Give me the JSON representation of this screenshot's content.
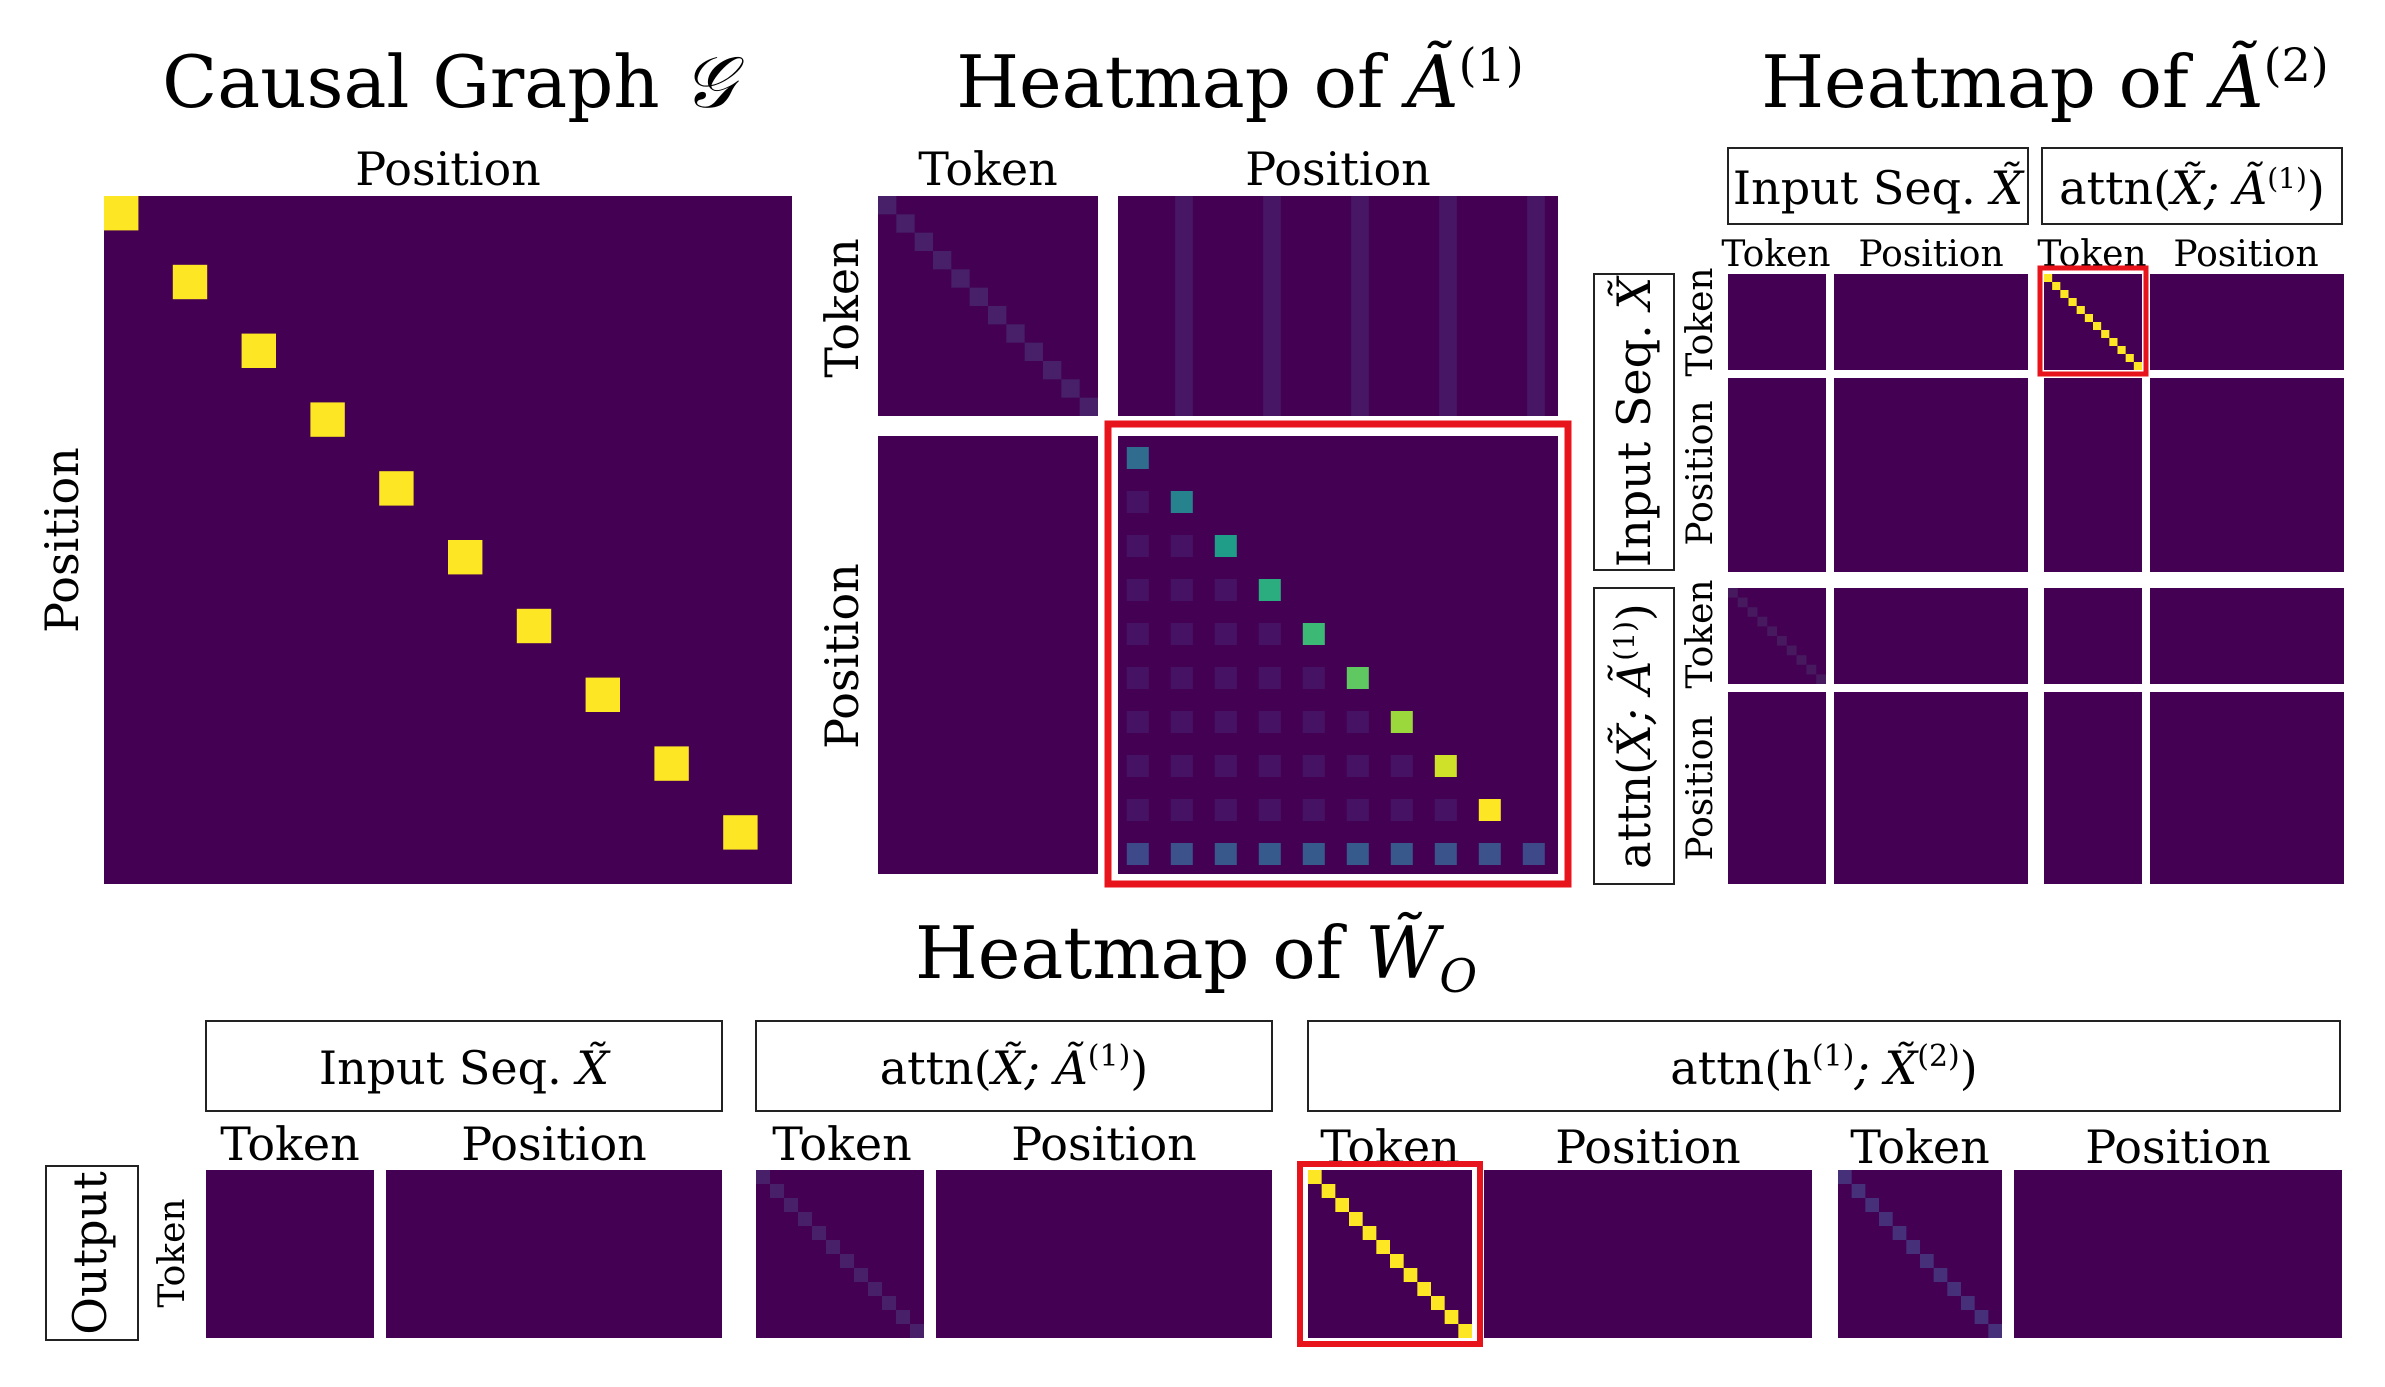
{
  "colors": {
    "background": "#440154",
    "offdiag_light": "#46296e",
    "high": "#fde725",
    "highlight_border": "#e8141c",
    "frame": "#222222"
  },
  "causal_graph": {
    "title_text": "Causal Graph ",
    "title_symbol": "𝒢",
    "col_label": "Position",
    "row_label": "Position",
    "diagonal_strength": [
      1,
      1,
      1,
      1,
      1,
      1,
      1,
      1,
      1,
      1
    ]
  },
  "a1": {
    "title_text": "Heatmap of ",
    "title_symbol": "Ã",
    "title_sup": "(1)",
    "col_labels": [
      "Token",
      "Position"
    ],
    "row_labels": [
      "Token",
      "Position"
    ],
    "position_diag_strength": [
      0.35,
      0.45,
      0.55,
      0.62,
      0.68,
      0.75,
      0.85,
      0.93,
      1.0
    ],
    "position_last_row_strength": [
      0.22,
      0.25,
      0.27,
      0.28,
      0.28,
      0.28,
      0.27,
      0.26,
      0.25,
      0.22
    ]
  },
  "a2": {
    "title_text": "Heatmap of ",
    "title_symbol": "Ã",
    "title_sup": "(2)",
    "input_label": "Input Seq. ",
    "input_symbol": "X̃",
    "attn_label": "attn(",
    "attn_args": "X̃; Ã",
    "attn_sup": "(1)",
    "attn_close": ")",
    "col_labels": [
      "Token",
      "Position",
      "Token",
      "Position"
    ],
    "row_labels": [
      "Token",
      "Position",
      "Token",
      "Position"
    ]
  },
  "wo": {
    "title_text": "Heatmap of ",
    "title_symbol": "W̃",
    "title_sub": "O",
    "group1_label": "Input Seq. ",
    "group1_symbol": "X̃",
    "group2_label": "attn(",
    "group2_args": "X̃; Ã",
    "group2_sup": "(1)",
    "group2_close": ")",
    "group3_label": "attn(h",
    "group3_sup1": "(1)",
    "group3_mid": "; X̃",
    "group3_sup2": "(2)",
    "group3_close": ")",
    "col_labels": [
      "Token",
      "Position",
      "Token",
      "Position",
      "Token",
      "Position",
      "Token",
      "Position"
    ],
    "output_label": "Output",
    "row_label": "Token"
  }
}
